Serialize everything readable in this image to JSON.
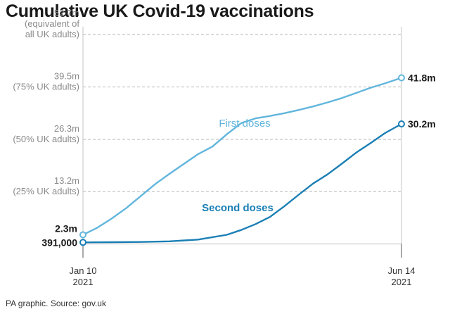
{
  "title": "Cumulative UK Covid-19 vaccinations",
  "source": "PA graphic. Source: gov.uk",
  "colors": {
    "first": "#62b6dd",
    "second": "#1a7fb5",
    "grid": "#b5b5b5",
    "axis": "#555555",
    "label": "#8a8a8a"
  },
  "chart_data": {
    "type": "line",
    "title": "Cumulative UK Covid-19 vaccinations",
    "xlabel": "",
    "ylabel": "",
    "ylim": [
      0,
      55
    ],
    "y_unit": "millions",
    "x_range": [
      "2021-01-10",
      "2021-06-14"
    ],
    "grid": "horizontal dashed at y ticks",
    "y_ticks": [
      {
        "value": 52.7,
        "lines": [
          "52.7m",
          "(equivalent of",
          "all UK adults)"
        ]
      },
      {
        "value": 39.5,
        "lines": [
          "39.5m",
          "(75% UK adults)"
        ]
      },
      {
        "value": 26.3,
        "lines": [
          "26.3m",
          "(50% UK adults)"
        ]
      },
      {
        "value": 13.2,
        "lines": [
          "13.2m",
          "(25% UK adults)"
        ]
      }
    ],
    "x_ticks": [
      {
        "date": "2021-01-10",
        "lines": [
          "Jan 10",
          "2021"
        ]
      },
      {
        "date": "2021-06-14",
        "lines": [
          "Jun 14",
          "2021"
        ]
      }
    ],
    "series": [
      {
        "name": "First doses",
        "start_label": "2.3m",
        "end_label": "41.8m",
        "points": [
          [
            "2021-01-10",
            2.3
          ],
          [
            "2021-01-17",
            4.1
          ],
          [
            "2021-01-24",
            6.4
          ],
          [
            "2021-01-31",
            9.0
          ],
          [
            "2021-02-07",
            12.0
          ],
          [
            "2021-02-14",
            15.0
          ],
          [
            "2021-02-21",
            17.6
          ],
          [
            "2021-02-28",
            20.1
          ],
          [
            "2021-03-07",
            22.6
          ],
          [
            "2021-03-14",
            24.5
          ],
          [
            "2021-03-21",
            27.6
          ],
          [
            "2021-03-28",
            30.4
          ],
          [
            "2021-04-04",
            31.6
          ],
          [
            "2021-04-11",
            32.2
          ],
          [
            "2021-04-18",
            32.9
          ],
          [
            "2021-04-25",
            33.7
          ],
          [
            "2021-05-02",
            34.6
          ],
          [
            "2021-05-09",
            35.6
          ],
          [
            "2021-05-16",
            36.7
          ],
          [
            "2021-05-23",
            38.0
          ],
          [
            "2021-05-30",
            39.3
          ],
          [
            "2021-06-06",
            40.4
          ],
          [
            "2021-06-14",
            41.8
          ]
        ]
      },
      {
        "name": "Second doses",
        "start_label": "391,000",
        "end_label": "30.2m",
        "points": [
          [
            "2021-01-10",
            0.391
          ],
          [
            "2021-01-24",
            0.45
          ],
          [
            "2021-02-07",
            0.5
          ],
          [
            "2021-02-21",
            0.65
          ],
          [
            "2021-03-07",
            1.1
          ],
          [
            "2021-03-21",
            2.3
          ],
          [
            "2021-03-28",
            3.5
          ],
          [
            "2021-04-04",
            5.0
          ],
          [
            "2021-04-11",
            6.8
          ],
          [
            "2021-04-18",
            9.5
          ],
          [
            "2021-04-25",
            12.4
          ],
          [
            "2021-05-02",
            15.2
          ],
          [
            "2021-05-09",
            17.5
          ],
          [
            "2021-05-16",
            20.2
          ],
          [
            "2021-05-23",
            23.0
          ],
          [
            "2021-05-30",
            25.4
          ],
          [
            "2021-06-06",
            27.9
          ],
          [
            "2021-06-14",
            30.2
          ]
        ]
      }
    ]
  }
}
